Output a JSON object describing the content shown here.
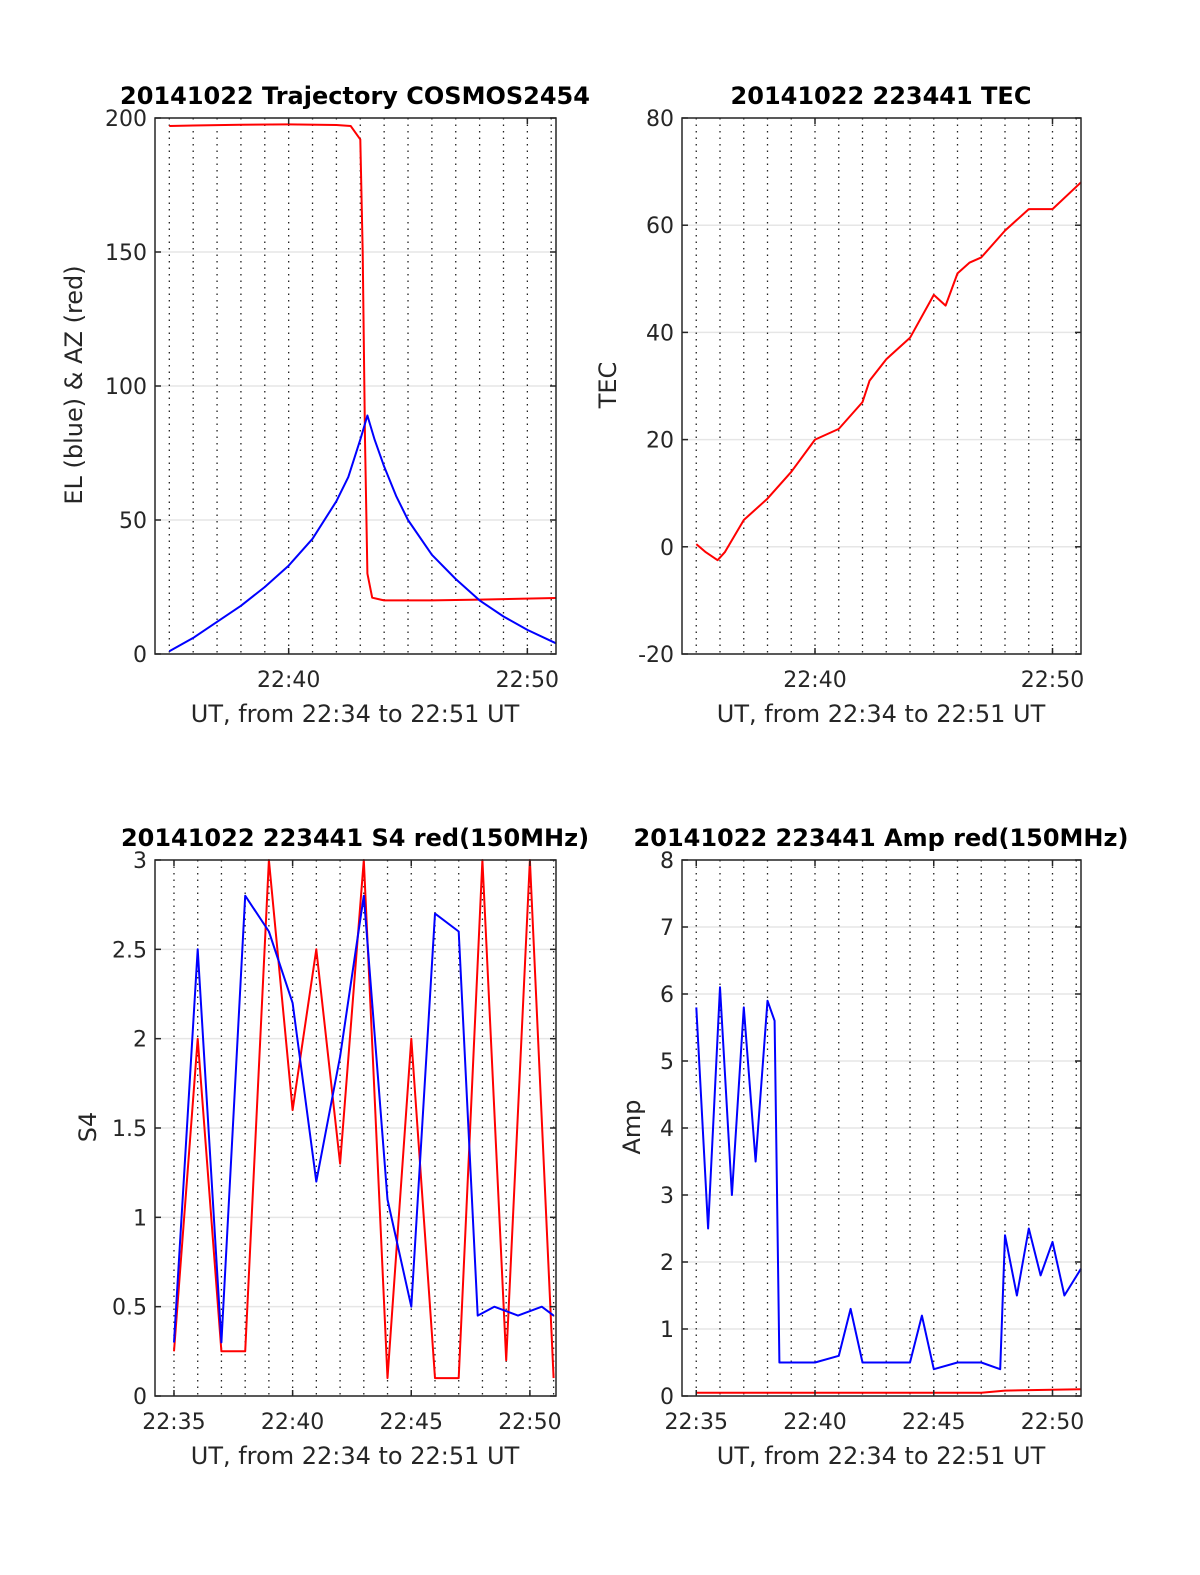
{
  "chart_data": [
    {
      "id": "traj",
      "type": "line",
      "title": "20141022 Trajectory COSMOS2454",
      "xlabel": "UT, from 22:34 to 22:51 UT",
      "ylabel": "EL (blue) & AZ (red)",
      "x_unit": "minutes after 22:00 UT",
      "xlim": [
        34.4,
        51.2
      ],
      "ylim": [
        0,
        200
      ],
      "yticks": [
        0,
        50,
        100,
        150,
        200
      ],
      "xticks": [
        40,
        50
      ],
      "xtick_labels": [
        "22:40",
        "22:50"
      ],
      "grid": true,
      "series": [
        {
          "name": "AZ",
          "color": "#ff0000",
          "x": [
            35.0,
            36.0,
            38.0,
            40.0,
            42.0,
            42.6,
            43.0,
            43.1,
            43.2,
            43.3,
            43.5,
            44.0,
            46.0,
            48.0,
            51.2
          ],
          "y": [
            197,
            197.2,
            197.5,
            197.6,
            197.4,
            197,
            192,
            150,
            80,
            30,
            21,
            20,
            20,
            20.3,
            20.9
          ]
        },
        {
          "name": "EL",
          "color": "#0000ff",
          "x": [
            35.0,
            36.0,
            37.0,
            38.0,
            39.0,
            40.0,
            41.0,
            42.0,
            42.5,
            43.0,
            43.3,
            43.6,
            44.0,
            44.5,
            45.0,
            46.0,
            47.0,
            48.0,
            49.0,
            50.0,
            51.2
          ],
          "y": [
            1,
            6,
            12,
            18,
            25,
            33,
            43,
            57,
            66,
            80,
            89,
            80,
            70,
            59,
            50,
            37,
            28,
            20,
            14,
            9,
            4
          ]
        }
      ]
    },
    {
      "id": "tec",
      "type": "line",
      "title": "20141022 223441 TEC",
      "xlabel": "UT, from 22:34 to 22:51 UT",
      "ylabel": "TEC",
      "x_unit": "minutes after 22:00 UT",
      "xlim": [
        34.4,
        51.2
      ],
      "ylim": [
        -20,
        80
      ],
      "yticks": [
        -20,
        0,
        20,
        40,
        60,
        80
      ],
      "xticks": [
        40,
        50
      ],
      "xtick_labels": [
        "22:40",
        "22:50"
      ],
      "grid": true,
      "series": [
        {
          "name": "TEC",
          "color": "#ff0000",
          "x": [
            35.0,
            35.4,
            35.9,
            36.2,
            37.0,
            38.0,
            39.0,
            40.0,
            41.0,
            42.0,
            42.3,
            43.0,
            44.0,
            45.0,
            45.5,
            46.0,
            46.5,
            47.0,
            48.0,
            49.0,
            50.0,
            51.2
          ],
          "y": [
            0.5,
            -1,
            -2.5,
            -1,
            5,
            9,
            14,
            20,
            22,
            27,
            31,
            35,
            39,
            47,
            45,
            51,
            53,
            54,
            59,
            63,
            63,
            68
          ]
        }
      ]
    },
    {
      "id": "s4",
      "type": "line",
      "title": "20141022 223441 S4 red(150MHz)",
      "xlabel": "UT, from 22:34 to 22:51 UT",
      "ylabel": "S4",
      "x_unit": "minutes after 22:00 UT",
      "xlim": [
        34.2,
        51.1
      ],
      "ylim": [
        0,
        3
      ],
      "yticks": [
        0,
        0.5,
        1,
        1.5,
        2,
        2.5,
        3
      ],
      "ytick_labels": [
        "0",
        "0.5",
        "1",
        "1.5",
        "2",
        "2.5",
        "3"
      ],
      "xticks": [
        35,
        40,
        45,
        50
      ],
      "xtick_labels": [
        "22:35",
        "22:40",
        "22:45",
        "22:50"
      ],
      "grid": true,
      "series": [
        {
          "name": "red",
          "color": "#ff0000",
          "x": [
            35.0,
            36.0,
            37.0,
            38.0,
            39.0,
            40.0,
            41.0,
            42.0,
            43.0,
            44.0,
            45.0,
            46.0,
            47.0,
            48.0,
            49.0,
            50.0,
            51.0
          ],
          "y": [
            0.25,
            2.0,
            0.25,
            0.25,
            3.0,
            1.6,
            2.5,
            1.3,
            3.0,
            0.1,
            2.0,
            0.1,
            0.1,
            3.0,
            0.2,
            3.0,
            0.1
          ]
        },
        {
          "name": "blue",
          "color": "#0000ff",
          "x": [
            35.0,
            36.0,
            37.0,
            38.0,
            39.0,
            40.0,
            41.0,
            42.0,
            43.0,
            44.0,
            45.0,
            46.0,
            47.0,
            47.8,
            48.5,
            49.5,
            50.5,
            51.0
          ],
          "y": [
            0.3,
            2.5,
            0.3,
            2.8,
            2.6,
            2.2,
            1.2,
            1.9,
            2.8,
            1.1,
            0.5,
            2.7,
            2.6,
            0.45,
            0.5,
            0.45,
            0.5,
            0.45
          ]
        }
      ]
    },
    {
      "id": "amp",
      "type": "line",
      "title": "20141022 223441 Amp red(150MHz)",
      "xlabel": "UT, from 22:34 to 22:51 UT",
      "ylabel": "Amp",
      "x_unit": "minutes after 22:00 UT",
      "xlim": [
        34.4,
        51.2
      ],
      "ylim": [
        0,
        8
      ],
      "yticks": [
        0,
        1,
        2,
        3,
        4,
        5,
        6,
        7,
        8
      ],
      "xticks": [
        35,
        40,
        45,
        50
      ],
      "xtick_labels": [
        "22:35",
        "22:40",
        "22:45",
        "22:50"
      ],
      "grid": true,
      "series": [
        {
          "name": "red",
          "color": "#ff0000",
          "x": [
            35.0,
            38.3,
            42.0,
            47.0,
            48.0,
            51.2
          ],
          "y": [
            0.05,
            0.05,
            0.05,
            0.05,
            0.08,
            0.1
          ]
        },
        {
          "name": "blue",
          "color": "#0000ff",
          "x": [
            35.0,
            35.5,
            36.0,
            36.5,
            37.0,
            37.5,
            38.0,
            38.3,
            38.5,
            39.0,
            40.0,
            41.0,
            41.5,
            42.0,
            43.0,
            44.0,
            44.5,
            45.0,
            46.0,
            47.0,
            47.8,
            48.0,
            48.5,
            49.0,
            49.5,
            50.0,
            50.5,
            51.2
          ],
          "y": [
            5.8,
            2.5,
            6.1,
            3.0,
            5.8,
            3.5,
            5.9,
            5.6,
            0.5,
            0.5,
            0.5,
            0.6,
            1.3,
            0.5,
            0.5,
            0.5,
            1.2,
            0.4,
            0.5,
            0.5,
            0.4,
            2.4,
            1.5,
            2.5,
            1.8,
            2.3,
            1.5,
            1.9
          ]
        }
      ]
    }
  ]
}
